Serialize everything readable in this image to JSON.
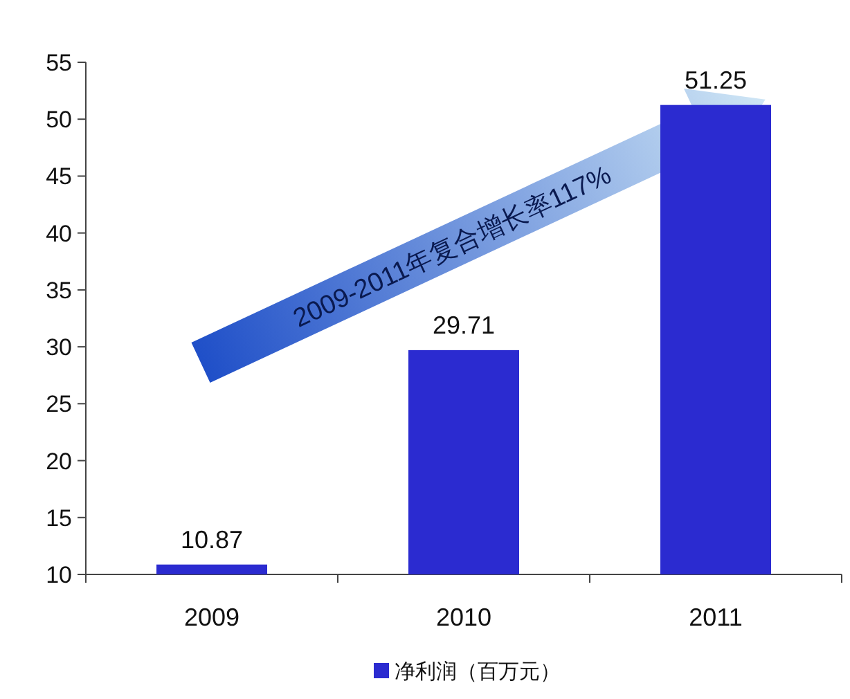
{
  "chart_data": {
    "type": "bar",
    "categories": [
      "2009",
      "2010",
      "2011"
    ],
    "series": [
      {
        "name": "净利润（百万元）",
        "color": "#2b2bd0",
        "values": [
          10.87,
          29.71,
          51.25
        ]
      }
    ],
    "ylim": [
      10,
      55
    ],
    "yticks": [
      10,
      15,
      20,
      25,
      30,
      35,
      40,
      45,
      50,
      55
    ],
    "data_labels": true,
    "legend": "bottom",
    "grid": false,
    "annotations": [
      "2009-2011年复合增长率117%"
    ]
  }
}
